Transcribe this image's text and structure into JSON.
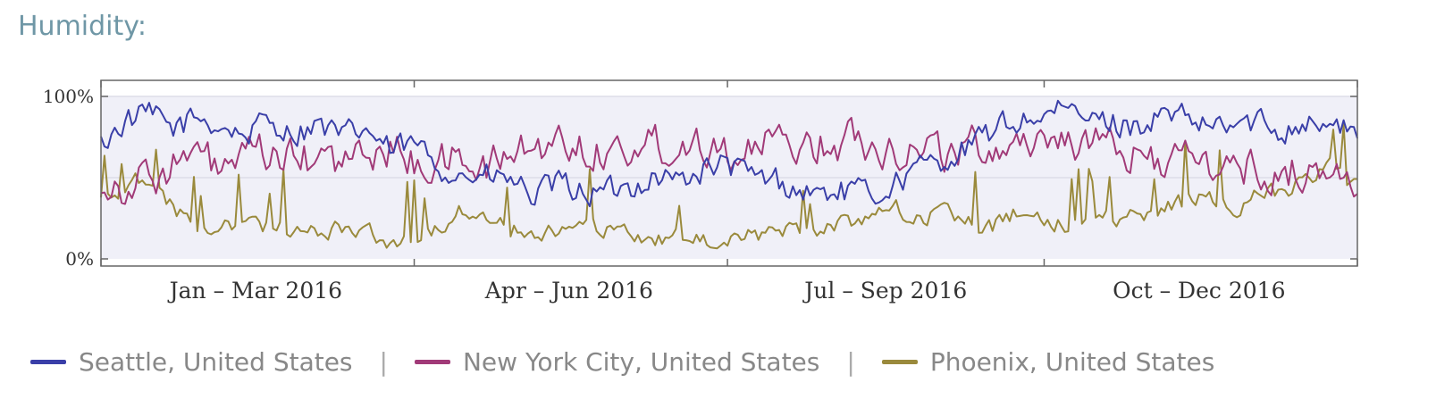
{
  "title": "Humidity:",
  "chart_data": {
    "type": "line",
    "title": "Humidity:",
    "x_unit": "day of year",
    "x_range": [
      1,
      366
    ],
    "ylim": [
      0,
      100
    ],
    "y_ticks": [
      {
        "value": 0,
        "label": "0%"
      },
      {
        "value": 100,
        "label": "100%"
      }
    ],
    "x_ticks": [
      {
        "at": 1,
        "label": ""
      },
      {
        "at": 92,
        "label": ""
      },
      {
        "at": 183,
        "label": ""
      },
      {
        "at": 275,
        "label": ""
      },
      {
        "at": 366,
        "label": ""
      }
    ],
    "x_labels": [
      {
        "at": 46,
        "label": "Jan – Mar 2016"
      },
      {
        "at": 137,
        "label": "Apr – Jun 2016"
      },
      {
        "at": 229,
        "label": "Jul – Sep 2016"
      },
      {
        "at": 320,
        "label": "Oct – Dec 2016"
      }
    ],
    "grid": "horizontal at 50% and 100%",
    "legend_position": "bottom",
    "series": [
      {
        "name": "Seattle, United States",
        "color": "#3a3fa8",
        "x": [
          1,
          8,
          15,
          22,
          29,
          36,
          43,
          50,
          57,
          64,
          71,
          78,
          85,
          92,
          99,
          106,
          113,
          120,
          127,
          134,
          141,
          148,
          155,
          162,
          169,
          176,
          183,
          190,
          197,
          204,
          211,
          218,
          225,
          232,
          239,
          246,
          253,
          260,
          267,
          274,
          281,
          288,
          295,
          302,
          309,
          316,
          323,
          330,
          337,
          344,
          351,
          358,
          365
        ],
        "values": [
          70,
          85,
          88,
          80,
          87,
          82,
          76,
          85,
          78,
          83,
          74,
          80,
          66,
          70,
          58,
          52,
          50,
          48,
          38,
          45,
          42,
          40,
          45,
          52,
          48,
          55,
          58,
          50,
          48,
          42,
          40,
          42,
          38,
          48,
          55,
          62,
          68,
          78,
          85,
          88,
          90,
          86,
          84,
          82,
          88,
          85,
          80,
          82,
          84,
          80,
          86,
          82,
          78
        ]
      },
      {
        "name": "New York City, United States",
        "color": "#a13a78",
        "x": [
          1,
          8,
          15,
          22,
          29,
          36,
          43,
          50,
          57,
          64,
          71,
          78,
          85,
          92,
          99,
          106,
          113,
          120,
          127,
          134,
          141,
          148,
          155,
          162,
          169,
          176,
          183,
          190,
          197,
          204,
          211,
          218,
          225,
          232,
          239,
          246,
          253,
          260,
          267,
          274,
          281,
          288,
          295,
          302,
          309,
          316,
          323,
          330,
          337,
          344,
          351,
          358,
          365
        ],
        "values": [
          48,
          45,
          50,
          58,
          62,
          55,
          60,
          65,
          60,
          62,
          58,
          64,
          68,
          60,
          58,
          62,
          55,
          65,
          68,
          72,
          70,
          66,
          68,
          72,
          70,
          74,
          68,
          66,
          70,
          72,
          70,
          74,
          72,
          68,
          70,
          66,
          68,
          70,
          72,
          74,
          76,
          70,
          66,
          64,
          62,
          60,
          58,
          56,
          54,
          52,
          55,
          50,
          52
        ]
      },
      {
        "name": "Phoenix, United States",
        "color": "#9a8a3c",
        "x": [
          1,
          8,
          15,
          22,
          29,
          36,
          43,
          50,
          57,
          64,
          71,
          78,
          85,
          92,
          99,
          106,
          113,
          120,
          127,
          134,
          141,
          148,
          155,
          162,
          169,
          176,
          183,
          190,
          197,
          204,
          211,
          218,
          225,
          232,
          239,
          246,
          253,
          260,
          267,
          274,
          281,
          288,
          295,
          302,
          309,
          316,
          323,
          330,
          337,
          344,
          351,
          358,
          365
        ],
        "values": [
          38,
          45,
          50,
          32,
          22,
          20,
          25,
          20,
          18,
          15,
          20,
          16,
          12,
          14,
          20,
          30,
          25,
          18,
          14,
          16,
          20,
          18,
          14,
          12,
          15,
          10,
          12,
          14,
          18,
          16,
          20,
          22,
          28,
          32,
          25,
          30,
          22,
          20,
          28,
          25,
          20,
          22,
          25,
          28,
          30,
          35,
          40,
          32,
          38,
          42,
          48,
          55,
          50
        ]
      }
    ]
  },
  "legend": [
    {
      "label": "Seattle, United States",
      "color": "#3a3fa8"
    },
    {
      "label": "New York City, United States",
      "color": "#a13a78"
    },
    {
      "label": "Phoenix, United States",
      "color": "#9a8a3c"
    }
  ],
  "legend_separator": "|"
}
